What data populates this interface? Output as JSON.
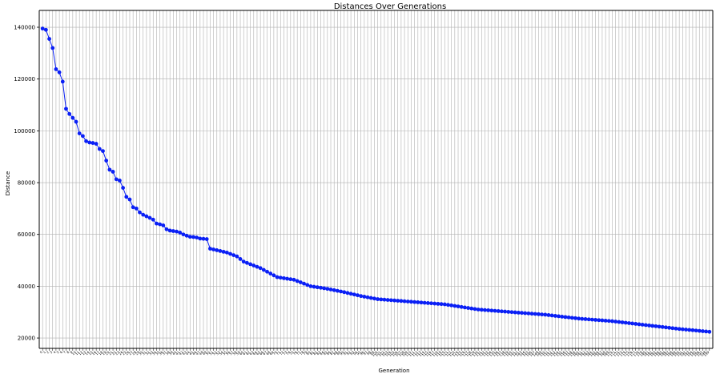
{
  "chart_data": {
    "type": "line",
    "title": "Distances Over Generations",
    "xlabel": "Generation",
    "ylabel": "Distance",
    "xlim": [
      -1,
      200
    ],
    "ylim": [
      16000,
      146500
    ],
    "yticks": [
      20000,
      40000,
      60000,
      80000,
      100000,
      120000,
      140000
    ],
    "grid": true,
    "series": [
      {
        "color": "#0a1ff5",
        "anchors": [
          [
            0,
            139500
          ],
          [
            1,
            139000
          ],
          [
            2,
            135500
          ],
          [
            3,
            132000
          ],
          [
            4,
            123800
          ],
          [
            5,
            122600
          ],
          [
            6,
            119000
          ],
          [
            7,
            108500
          ],
          [
            8,
            106500
          ],
          [
            9,
            105000
          ],
          [
            10,
            103500
          ],
          [
            11,
            99000
          ],
          [
            12,
            98000
          ],
          [
            13,
            96000
          ],
          [
            14,
            95500
          ],
          [
            15,
            95300
          ],
          [
            16,
            95000
          ],
          [
            17,
            93000
          ],
          [
            18,
            92200
          ],
          [
            19,
            88500
          ],
          [
            20,
            85000
          ],
          [
            21,
            84200
          ],
          [
            22,
            81300
          ],
          [
            23,
            80800
          ],
          [
            24,
            78000
          ],
          [
            25,
            74500
          ],
          [
            26,
            73500
          ],
          [
            27,
            70500
          ],
          [
            28,
            70000
          ],
          [
            29,
            68500
          ],
          [
            30,
            67600
          ],
          [
            31,
            67000
          ],
          [
            32,
            66400
          ],
          [
            33,
            65700
          ],
          [
            34,
            64200
          ],
          [
            35,
            63900
          ],
          [
            36,
            63500
          ],
          [
            37,
            62000
          ],
          [
            38,
            61500
          ],
          [
            39,
            61300
          ],
          [
            40,
            61100
          ],
          [
            41,
            60700
          ],
          [
            42,
            60000
          ],
          [
            43,
            59500
          ],
          [
            44,
            59100
          ],
          [
            45,
            59000
          ],
          [
            46,
            58800
          ],
          [
            47,
            58400
          ],
          [
            48,
            58300
          ],
          [
            49,
            58200
          ],
          [
            50,
            54500
          ],
          [
            55,
            53000
          ],
          [
            58,
            51500
          ],
          [
            60,
            49500
          ],
          [
            65,
            47000
          ],
          [
            70,
            43500
          ],
          [
            75,
            42500
          ],
          [
            80,
            40000
          ],
          [
            85,
            39000
          ],
          [
            90,
            37700
          ],
          [
            95,
            36200
          ],
          [
            100,
            35000
          ],
          [
            110,
            34000
          ],
          [
            120,
            33000
          ],
          [
            130,
            31000
          ],
          [
            140,
            30000
          ],
          [
            150,
            29000
          ],
          [
            160,
            27500
          ],
          [
            170,
            26500
          ],
          [
            180,
            25000
          ],
          [
            190,
            23500
          ],
          [
            199,
            22400
          ]
        ]
      }
    ]
  }
}
